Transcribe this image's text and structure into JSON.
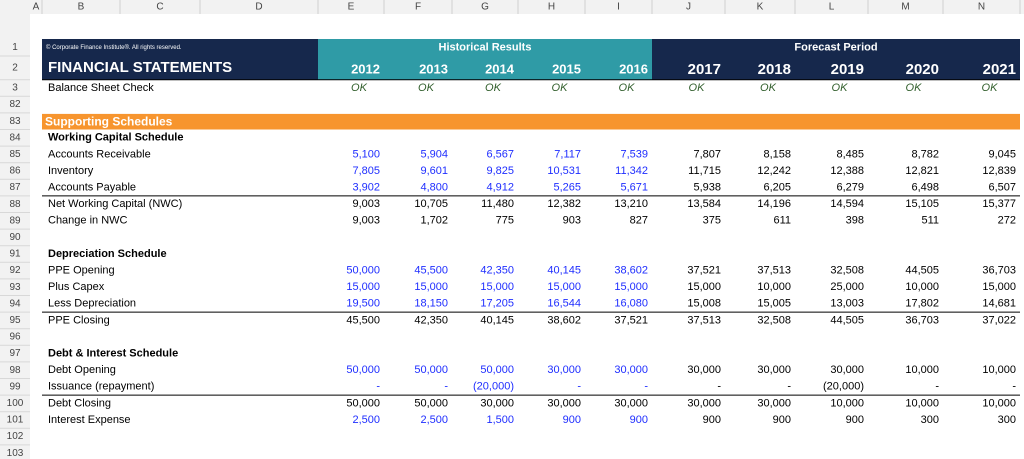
{
  "column_letters": [
    "A",
    "B",
    "C",
    "D",
    "E",
    "F",
    "G",
    "H",
    "I",
    "J",
    "K",
    "L",
    "M",
    "N"
  ],
  "row_numbers": [
    "1",
    "2",
    "3",
    "82",
    "83",
    "84",
    "85",
    "86",
    "87",
    "88",
    "89",
    "90",
    "91",
    "92",
    "93",
    "94",
    "95",
    "96",
    "97",
    "98",
    "99",
    "100",
    "101",
    "102",
    "103"
  ],
  "banner": {
    "copyright": "© Corporate Finance Institute®. All rights reserved.",
    "historical": "Historical Results",
    "forecast": "Forecast Period",
    "title": "FINANCIAL STATEMENTS",
    "years": [
      "2012",
      "2013",
      "2014",
      "2015",
      "2016",
      "2017",
      "2018",
      "2019",
      "2020",
      "2021"
    ]
  },
  "check": {
    "label": "Balance Sheet Check",
    "values": [
      "OK",
      "OK",
      "OK",
      "OK",
      "OK",
      "OK",
      "OK",
      "OK",
      "OK",
      "OK"
    ]
  },
  "section_title": "Supporting Schedules",
  "schedules": [
    {
      "title": "Working Capital Schedule",
      "rows": [
        {
          "label": "Accounts Receivable",
          "values": [
            "5,100",
            "5,904",
            "6,567",
            "7,117",
            "7,539",
            "7,807",
            "8,158",
            "8,485",
            "8,782",
            "9,045"
          ]
        },
        {
          "label": "Inventory",
          "values": [
            "7,805",
            "9,601",
            "9,825",
            "10,531",
            "11,342",
            "11,715",
            "12,242",
            "12,388",
            "12,821",
            "12,839"
          ]
        },
        {
          "label": "Accounts Payable",
          "values": [
            "3,902",
            "4,800",
            "4,912",
            "5,265",
            "5,671",
            "5,938",
            "6,205",
            "6,279",
            "6,498",
            "6,507"
          ]
        },
        {
          "label": "Net Working Capital (NWC)",
          "values": [
            "9,003",
            "10,705",
            "11,480",
            "12,382",
            "13,210",
            "13,584",
            "14,196",
            "14,594",
            "15,105",
            "15,377"
          ]
        },
        {
          "label": "Change in NWC",
          "values": [
            "9,003",
            "1,702",
            "775",
            "903",
            "827",
            "375",
            "611",
            "398",
            "511",
            "272"
          ]
        }
      ]
    },
    {
      "title": "Depreciation Schedule",
      "rows": [
        {
          "label": "PPE Opening",
          "values": [
            "50,000",
            "45,500",
            "42,350",
            "40,145",
            "38,602",
            "37,521",
            "37,513",
            "32,508",
            "44,505",
            "36,703"
          ]
        },
        {
          "label": "Plus Capex",
          "values": [
            "15,000",
            "15,000",
            "15,000",
            "15,000",
            "15,000",
            "15,000",
            "10,000",
            "25,000",
            "10,000",
            "15,000"
          ]
        },
        {
          "label": "Less Depreciation",
          "values": [
            "19,500",
            "18,150",
            "17,205",
            "16,544",
            "16,080",
            "15,008",
            "15,005",
            "13,003",
            "17,802",
            "14,681"
          ]
        },
        {
          "label": "PPE Closing",
          "values": [
            "45,500",
            "42,350",
            "40,145",
            "38,602",
            "37,521",
            "37,513",
            "32,508",
            "44,505",
            "36,703",
            "37,022"
          ]
        }
      ]
    },
    {
      "title": "Debt & Interest Schedule",
      "rows": [
        {
          "label": "Debt Opening",
          "values": [
            "50,000",
            "50,000",
            "50,000",
            "30,000",
            "30,000",
            "30,000",
            "30,000",
            "30,000",
            "10,000",
            "10,000"
          ]
        },
        {
          "label": "Issuance (repayment)",
          "values": [
            "-",
            "-",
            "(20,000)",
            "-",
            "-",
            "-",
            "-",
            "(20,000)",
            "-",
            "-"
          ]
        },
        {
          "label": "Debt Closing",
          "values": [
            "50,000",
            "50,000",
            "30,000",
            "30,000",
            "30,000",
            "30,000",
            "30,000",
            "10,000",
            "10,000",
            "10,000"
          ]
        },
        {
          "label": "Interest Expense",
          "values": [
            "2,500",
            "2,500",
            "1,500",
            "900",
            "900",
            "900",
            "900",
            "900",
            "300",
            "300"
          ]
        }
      ]
    }
  ]
}
